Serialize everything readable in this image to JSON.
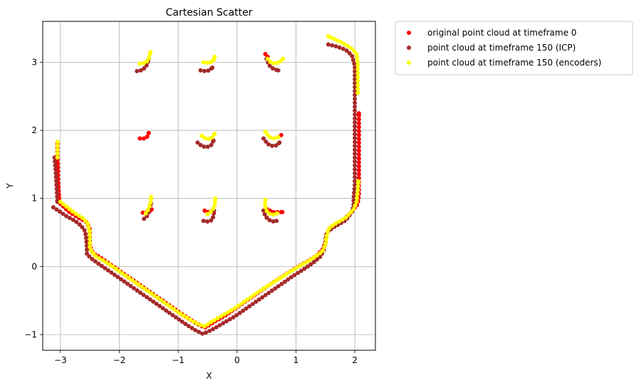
{
  "chart_data": {
    "type": "scatter",
    "title": "Cartesian Scatter",
    "xlabel": "X",
    "ylabel": "Y",
    "xlim": [
      -3.3,
      2.35
    ],
    "ylim": [
      -1.23,
      3.6
    ],
    "x_ticks": [
      -3,
      -2,
      -1,
      0,
      1,
      2
    ],
    "x_tick_labels": [
      "−3",
      "−2",
      "−1",
      "0",
      "1",
      "2"
    ],
    "y_ticks": [
      -1,
      0,
      1,
      2,
      3
    ],
    "y_tick_labels": [
      "−1",
      "0",
      "1",
      "2",
      "3"
    ],
    "grid": true,
    "legend_position": "outside-right-top",
    "series": [
      {
        "name": "original point cloud at timeframe 0",
        "color": "#ff0000",
        "segments": [
          [
            [
              -3.05,
              1.8
            ],
            [
              -3.05,
              1.65
            ],
            [
              -3.04,
              1.45
            ],
            [
              -3.04,
              1.3
            ],
            [
              -3.03,
              1.15
            ],
            [
              -3.02,
              1.0
            ]
          ],
          [
            [
              -3.0,
              0.92
            ],
            [
              -2.85,
              0.8
            ],
            [
              -2.7,
              0.72
            ],
            [
              -2.55,
              0.65
            ],
            [
              -2.5,
              0.55
            ],
            [
              -2.5,
              0.42
            ],
            [
              -2.5,
              0.3
            ],
            [
              -2.45,
              0.2
            ],
            [
              -2.3,
              0.12
            ],
            [
              -2.1,
              0.0
            ],
            [
              -1.9,
              -0.12
            ],
            [
              -1.7,
              -0.24
            ],
            [
              -1.5,
              -0.36
            ],
            [
              -1.3,
              -0.48
            ],
            [
              -1.1,
              -0.6
            ],
            [
              -0.9,
              -0.72
            ],
            [
              -0.7,
              -0.83
            ],
            [
              -0.55,
              -0.9
            ],
            [
              -0.4,
              -0.82
            ],
            [
              -0.2,
              -0.72
            ],
            [
              0.0,
              -0.6
            ],
            [
              0.2,
              -0.48
            ],
            [
              0.4,
              -0.36
            ],
            [
              0.6,
              -0.24
            ],
            [
              0.8,
              -0.13
            ],
            [
              1.0,
              -0.02
            ],
            [
              1.2,
              0.08
            ],
            [
              1.35,
              0.16
            ],
            [
              1.45,
              0.25
            ],
            [
              1.5,
              0.35
            ],
            [
              1.52,
              0.48
            ],
            [
              1.6,
              0.58
            ],
            [
              1.8,
              0.68
            ],
            [
              1.95,
              0.8
            ],
            [
              2.05,
              0.92
            ],
            [
              2.07,
              1.05
            ],
            [
              2.07,
              1.2
            ],
            [
              2.07,
              1.35
            ],
            [
              2.07,
              1.5
            ],
            [
              2.07,
              1.65
            ],
            [
              2.07,
              1.8
            ],
            [
              2.07,
              1.95
            ],
            [
              2.07,
              2.1
            ],
            [
              2.07,
              2.25
            ]
          ],
          [
            [
              -1.65,
              1.88
            ],
            [
              -1.58,
              1.88
            ],
            [
              -1.53,
              1.9
            ],
            [
              -1.5,
              1.96
            ]
          ],
          [
            [
              -1.6,
              0.79
            ],
            [
              -1.5,
              0.8
            ],
            [
              -1.45,
              0.84
            ]
          ],
          [
            [
              -0.55,
              0.82
            ],
            [
              -0.48,
              0.8
            ],
            [
              -0.42,
              0.82
            ]
          ],
          [
            [
              0.5,
              0.85
            ],
            [
              0.6,
              0.8
            ],
            [
              0.7,
              0.8
            ],
            [
              0.77,
              0.8
            ]
          ],
          [
            [
              0.48,
              3.12
            ],
            [
              0.52,
              3.08
            ]
          ],
          [
            [
              0.7,
              1.9
            ],
            [
              0.75,
              1.93
            ]
          ]
        ]
      },
      {
        "name": "point cloud at timeframe 150 (ICP)",
        "color": "#a52a2a",
        "segments": [
          [
            [
              -3.1,
              1.6
            ],
            [
              -3.09,
              1.5
            ],
            [
              -3.08,
              1.4
            ],
            [
              -3.07,
              1.25
            ],
            [
              -3.06,
              1.1
            ],
            [
              -3.05,
              0.95
            ]
          ],
          [
            [
              -3.12,
              0.87
            ],
            [
              -3.0,
              0.8
            ],
            [
              -2.9,
              0.74
            ],
            [
              -2.75,
              0.67
            ],
            [
              -2.65,
              0.6
            ],
            [
              -2.58,
              0.52
            ],
            [
              -2.56,
              0.4
            ],
            [
              -2.55,
              0.28
            ],
            [
              -2.55,
              0.18
            ],
            [
              -2.45,
              0.1
            ],
            [
              -2.25,
              -0.02
            ],
            [
              -2.05,
              -0.14
            ],
            [
              -1.85,
              -0.26
            ],
            [
              -1.65,
              -0.38
            ],
            [
              -1.45,
              -0.5
            ],
            [
              -1.25,
              -0.62
            ],
            [
              -1.05,
              -0.74
            ],
            [
              -0.85,
              -0.86
            ],
            [
              -0.7,
              -0.94
            ],
            [
              -0.58,
              -0.99
            ],
            [
              -0.45,
              -0.94
            ],
            [
              -0.25,
              -0.84
            ],
            [
              -0.05,
              -0.74
            ],
            [
              0.15,
              -0.62
            ],
            [
              0.35,
              -0.5
            ],
            [
              0.55,
              -0.38
            ],
            [
              0.75,
              -0.26
            ],
            [
              0.95,
              -0.14
            ],
            [
              1.15,
              -0.03
            ],
            [
              1.3,
              0.06
            ],
            [
              1.42,
              0.15
            ],
            [
              1.48,
              0.25
            ],
            [
              1.5,
              0.38
            ],
            [
              1.52,
              0.5
            ],
            [
              1.65,
              0.58
            ],
            [
              1.85,
              0.68
            ],
            [
              1.95,
              0.8
            ],
            [
              1.98,
              0.9
            ],
            [
              1.98,
              1.0
            ],
            [
              2.0,
              1.2
            ],
            [
              2.0,
              1.45
            ],
            [
              2.0,
              1.7
            ],
            [
              2.0,
              1.95
            ],
            [
              2.0,
              2.2
            ],
            [
              2.0,
              2.45
            ],
            [
              2.0,
              2.7
            ],
            [
              2.0,
              2.95
            ],
            [
              1.95,
              3.1
            ],
            [
              1.85,
              3.18
            ],
            [
              1.7,
              3.23
            ],
            [
              1.55,
              3.26
            ]
          ],
          [
            [
              -1.7,
              2.87
            ],
            [
              -1.63,
              2.88
            ],
            [
              -1.56,
              2.92
            ],
            [
              -1.52,
              2.98
            ],
            [
              -1.5,
              3.05
            ]
          ],
          [
            [
              -0.62,
              2.88
            ],
            [
              -0.55,
              2.87
            ],
            [
              -0.47,
              2.88
            ],
            [
              -0.42,
              2.92
            ]
          ],
          [
            [
              0.5,
              3.05
            ],
            [
              0.55,
              2.95
            ],
            [
              0.62,
              2.9
            ],
            [
              0.7,
              2.88
            ]
          ],
          [
            [
              -0.67,
              1.82
            ],
            [
              -0.6,
              1.77
            ],
            [
              -0.52,
              1.75
            ],
            [
              -0.44,
              1.78
            ],
            [
              -0.4,
              1.85
            ]
          ],
          [
            [
              0.45,
              1.88
            ],
            [
              0.52,
              1.8
            ],
            [
              0.6,
              1.77
            ],
            [
              0.68,
              1.78
            ],
            [
              0.72,
              1.82
            ]
          ],
          [
            [
              -1.58,
              0.7
            ],
            [
              -1.53,
              0.74
            ],
            [
              -1.5,
              0.8
            ],
            [
              -1.48,
              0.88
            ],
            [
              -1.46,
              0.93
            ]
          ],
          [
            [
              -0.57,
              0.67
            ],
            [
              -0.5,
              0.66
            ],
            [
              -0.43,
              0.68
            ],
            [
              -0.4,
              0.74
            ],
            [
              -0.39,
              0.82
            ]
          ],
          [
            [
              0.45,
              0.82
            ],
            [
              0.48,
              0.74
            ],
            [
              0.53,
              0.69
            ],
            [
              0.6,
              0.66
            ],
            [
              0.67,
              0.67
            ]
          ]
        ]
      },
      {
        "name": "point cloud at timeframe 150 (encoders)",
        "color": "#ffff00",
        "segments": [
          [
            [
              -3.05,
              1.83
            ],
            [
              -3.05,
              1.7
            ],
            [
              -3.05,
              1.6
            ]
          ],
          [
            [
              -3.0,
              0.95
            ],
            [
              -2.9,
              0.88
            ],
            [
              -2.75,
              0.78
            ],
            [
              -2.6,
              0.7
            ],
            [
              -2.53,
              0.62
            ],
            [
              -2.5,
              0.5
            ],
            [
              -2.5,
              0.38
            ],
            [
              -2.5,
              0.26
            ],
            [
              -2.4,
              0.15
            ],
            [
              -2.2,
              0.05
            ],
            [
              -2.0,
              -0.07
            ],
            [
              -1.8,
              -0.19
            ],
            [
              -1.6,
              -0.31
            ],
            [
              -1.4,
              -0.43
            ],
            [
              -1.2,
              -0.55
            ],
            [
              -1.0,
              -0.67
            ],
            [
              -0.8,
              -0.78
            ],
            [
              -0.65,
              -0.85
            ],
            [
              -0.55,
              -0.88
            ],
            [
              -0.45,
              -0.82
            ],
            [
              -0.25,
              -0.72
            ],
            [
              -0.05,
              -0.62
            ],
            [
              0.15,
              -0.5
            ],
            [
              0.35,
              -0.38
            ],
            [
              0.55,
              -0.27
            ],
            [
              0.75,
              -0.16
            ],
            [
              0.95,
              -0.05
            ],
            [
              1.15,
              0.05
            ],
            [
              1.3,
              0.13
            ],
            [
              1.45,
              0.22
            ],
            [
              1.5,
              0.32
            ],
            [
              1.52,
              0.44
            ],
            [
              1.55,
              0.55
            ],
            [
              1.65,
              0.62
            ],
            [
              1.85,
              0.72
            ],
            [
              1.98,
              0.84
            ],
            [
              2.03,
              0.95
            ],
            [
              2.05,
              1.1
            ],
            [
              2.06,
              1.25
            ]
          ],
          [
            [
              2.05,
              2.55
            ],
            [
              2.05,
              2.7
            ],
            [
              2.05,
              2.85
            ],
            [
              2.05,
              3.0
            ],
            [
              2.03,
              3.12
            ],
            [
              1.95,
              3.2
            ],
            [
              1.8,
              3.28
            ],
            [
              1.65,
              3.34
            ],
            [
              1.55,
              3.38
            ]
          ],
          [
            [
              -1.65,
              2.98
            ],
            [
              -1.55,
              2.99
            ],
            [
              -1.5,
              3.05
            ],
            [
              -1.47,
              3.15
            ]
          ],
          [
            [
              -0.57,
              3.0
            ],
            [
              -0.48,
              2.99
            ],
            [
              -0.4,
              3.02
            ],
            [
              -0.38,
              3.08
            ]
          ],
          [
            [
              0.52,
              3.05
            ],
            [
              0.58,
              2.99
            ],
            [
              0.65,
              2.98
            ],
            [
              0.72,
              3.0
            ],
            [
              0.78,
              3.05
            ]
          ],
          [
            [
              -0.6,
              1.92
            ],
            [
              -0.52,
              1.87
            ],
            [
              -0.44,
              1.88
            ],
            [
              -0.38,
              1.95
            ]
          ],
          [
            [
              0.48,
              1.98
            ],
            [
              0.55,
              1.9
            ],
            [
              0.63,
              1.88
            ],
            [
              0.7,
              1.9
            ]
          ],
          [
            [
              -1.55,
              0.78
            ],
            [
              -1.5,
              0.85
            ],
            [
              -1.47,
              0.93
            ],
            [
              -1.46,
              1.02
            ]
          ],
          [
            [
              -0.5,
              0.77
            ],
            [
              -0.42,
              0.82
            ],
            [
              -0.38,
              0.9
            ],
            [
              -0.37,
              1.0
            ]
          ],
          [
            [
              0.48,
              0.98
            ],
            [
              0.47,
              0.9
            ],
            [
              0.5,
              0.82
            ],
            [
              0.56,
              0.77
            ],
            [
              0.63,
              0.76
            ],
            [
              0.68,
              0.78
            ]
          ]
        ]
      }
    ]
  }
}
